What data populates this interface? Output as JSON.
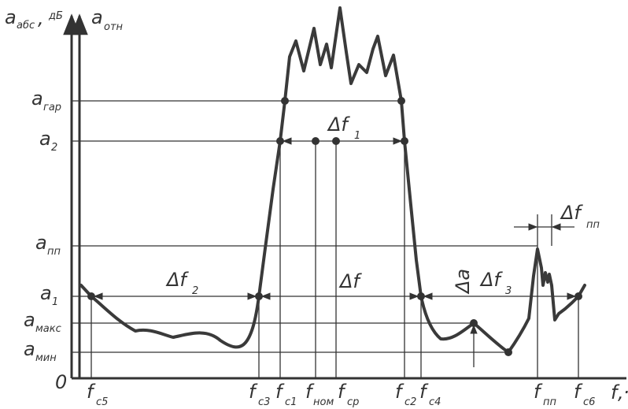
{
  "axis_labels": {
    "y1": "a",
    "y1_sub": "абс",
    "y_sep": ",",
    "y_unit": "дБ",
    "y2": "a",
    "y2_sub": "отн",
    "x": "f",
    "x_sep": ",",
    "x_unit": "·",
    "origin": "0"
  },
  "levels": [
    {
      "key": "gar",
      "main": "a",
      "sub": "гар"
    },
    {
      "key": "a2",
      "main": "a",
      "sub": "2"
    },
    {
      "key": "pp",
      "main": "a",
      "sub": "пп"
    },
    {
      "key": "a1",
      "main": "a",
      "sub": "1"
    },
    {
      "key": "maks",
      "main": "a",
      "sub": "макс"
    },
    {
      "key": "min",
      "main": "a",
      "sub": "мин"
    }
  ],
  "freqs": [
    {
      "key": "c5",
      "main": "f",
      "sub": "c5"
    },
    {
      "key": "c3",
      "main": "f",
      "sub": "c3"
    },
    {
      "key": "c1",
      "main": "f",
      "sub": "c1"
    },
    {
      "key": "nom",
      "main": "f",
      "sub": "ном"
    },
    {
      "key": "cp",
      "main": "f",
      "sub": "ср"
    },
    {
      "key": "c2",
      "main": "f",
      "sub": "c2"
    },
    {
      "key": "c4",
      "main": "f",
      "sub": "c4"
    },
    {
      "key": "pp",
      "main": "f",
      "sub": "пп"
    },
    {
      "key": "c6",
      "main": "f",
      "sub": "c6"
    }
  ],
  "annotations": {
    "df1": {
      "main": "Δf",
      "sub": "1"
    },
    "df2": {
      "main": "Δf",
      "sub": "2"
    },
    "df": {
      "main": "Δf",
      "sub": ""
    },
    "df3": {
      "main": "Δf",
      "sub": "3"
    },
    "dfpp": {
      "main": "Δf",
      "sub": "пп"
    },
    "da": {
      "main": "Δa"
    }
  },
  "colors": {
    "ink": "#333333",
    "background": "#ffffff"
  }
}
